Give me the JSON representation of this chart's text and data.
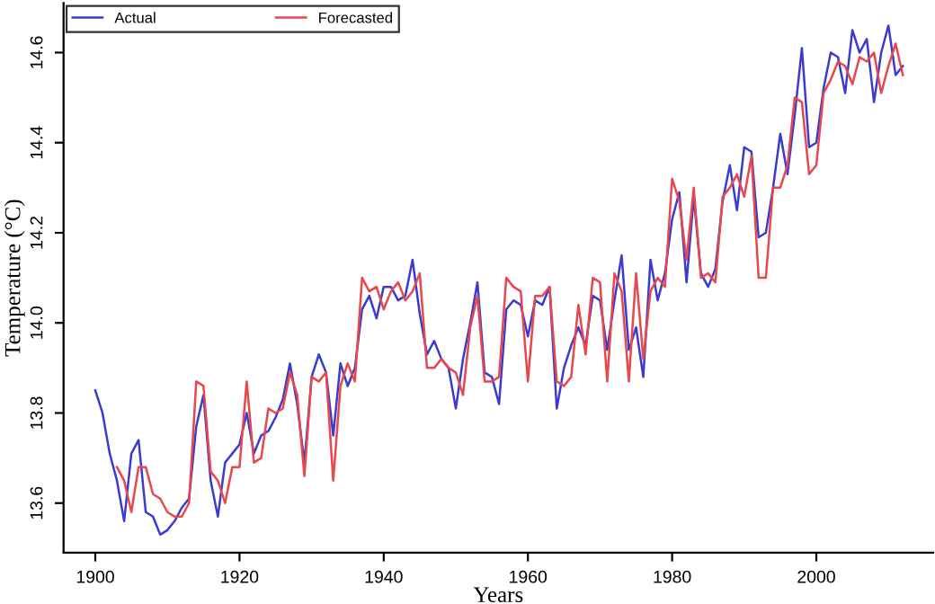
{
  "chart_data": {
    "type": "line",
    "xlabel": "Years",
    "ylabel": "Temperature (°C)",
    "xlim": [
      1895.6,
      2016.2
    ],
    "ylim": [
      13.49,
      14.71
    ],
    "xticks": [
      1900,
      1920,
      1940,
      1960,
      1980,
      2000
    ],
    "yticks": [
      {
        "value": 13.6,
        "label": "13.6"
      },
      {
        "value": 13.8,
        "label": "13.8"
      },
      {
        "value": 14.0,
        "label": "14.0"
      },
      {
        "value": 14.2,
        "label": "14.2"
      },
      {
        "value": 14.4,
        "label": "14.4"
      },
      {
        "value": 14.6,
        "label": "14.6"
      }
    ],
    "grid": false,
    "legend": "top left",
    "line_style": "solid",
    "series": [
      {
        "name": "Actual",
        "color": "#3b3bd1",
        "x": [
          1900,
          1901,
          1902,
          1903,
          1904,
          1905,
          1906,
          1907,
          1908,
          1909,
          1910,
          1911,
          1912,
          1913,
          1914,
          1915,
          1916,
          1917,
          1918,
          1919,
          1920,
          1921,
          1922,
          1923,
          1924,
          1925,
          1926,
          1927,
          1928,
          1929,
          1930,
          1931,
          1932,
          1933,
          1934,
          1935,
          1936,
          1937,
          1938,
          1939,
          1940,
          1941,
          1942,
          1943,
          1944,
          1945,
          1946,
          1947,
          1948,
          1949,
          1950,
          1951,
          1952,
          1953,
          1954,
          1955,
          1956,
          1957,
          1958,
          1959,
          1960,
          1961,
          1962,
          1963,
          1964,
          1965,
          1966,
          1967,
          1968,
          1969,
          1970,
          1971,
          1972,
          1973,
          1974,
          1975,
          1976,
          1977,
          1978,
          1979,
          1980,
          1981,
          1982,
          1983,
          1984,
          1985,
          1986,
          1987,
          1988,
          1989,
          1990,
          1991,
          1992,
          1993,
          1994,
          1995,
          1996,
          1997,
          1998,
          1999,
          2000,
          2001,
          2002,
          2003,
          2004,
          2005,
          2006,
          2007,
          2008,
          2009,
          2010,
          2011,
          2012
        ],
        "values": [
          13.85,
          13.8,
          13.71,
          13.65,
          13.56,
          13.71,
          13.74,
          13.58,
          13.57,
          13.53,
          13.54,
          13.56,
          13.59,
          13.61,
          13.77,
          13.84,
          13.65,
          13.57,
          13.69,
          13.71,
          13.73,
          13.8,
          13.71,
          13.75,
          13.76,
          13.79,
          13.83,
          13.91,
          13.82,
          13.69,
          13.88,
          13.93,
          13.89,
          13.75,
          13.91,
          13.86,
          13.9,
          14.03,
          14.06,
          14.01,
          14.08,
          14.08,
          14.05,
          14.06,
          14.14,
          14.02,
          13.93,
          13.96,
          13.92,
          13.9,
          13.81,
          13.92,
          14.0,
          14.09,
          13.89,
          13.88,
          13.82,
          14.03,
          14.05,
          14.04,
          13.97,
          14.05,
          14.04,
          14.08,
          13.81,
          13.9,
          13.95,
          13.99,
          13.95,
          14.06,
          14.05,
          13.94,
          14.05,
          14.15,
          13.94,
          13.99,
          13.88,
          14.14,
          14.05,
          14.11,
          14.23,
          14.29,
          14.09,
          14.28,
          14.11,
          14.08,
          14.12,
          14.27,
          14.35,
          14.25,
          14.39,
          14.38,
          14.19,
          14.2,
          14.3,
          14.42,
          14.33,
          14.46,
          14.61,
          14.39,
          14.4,
          14.52,
          14.6,
          14.59,
          14.51,
          14.65,
          14.6,
          14.63,
          14.49,
          14.6,
          14.66,
          14.55,
          14.57
        ]
      },
      {
        "name": "Forecasted",
        "color": "#e8474c",
        "x": [
          1903,
          1904,
          1905,
          1906,
          1907,
          1908,
          1909,
          1910,
          1911,
          1912,
          1913,
          1914,
          1915,
          1916,
          1917,
          1918,
          1919,
          1920,
          1921,
          1922,
          1923,
          1924,
          1925,
          1926,
          1927,
          1928,
          1929,
          1930,
          1931,
          1932,
          1933,
          1934,
          1935,
          1936,
          1937,
          1938,
          1939,
          1940,
          1941,
          1942,
          1943,
          1944,
          1945,
          1946,
          1947,
          1948,
          1949,
          1950,
          1951,
          1952,
          1953,
          1954,
          1955,
          1956,
          1957,
          1958,
          1959,
          1960,
          1961,
          1962,
          1963,
          1964,
          1965,
          1966,
          1967,
          1968,
          1969,
          1970,
          1971,
          1972,
          1973,
          1974,
          1975,
          1976,
          1977,
          1978,
          1979,
          1980,
          1981,
          1982,
          1983,
          1984,
          1985,
          1986,
          1987,
          1988,
          1989,
          1990,
          1991,
          1992,
          1993,
          1994,
          1995,
          1996,
          1997,
          1998,
          1999,
          2000,
          2001,
          2002,
          2003,
          2004,
          2005,
          2006,
          2007,
          2008,
          2009,
          2010,
          2011,
          2012
        ],
        "values": [
          13.68,
          13.65,
          13.58,
          13.68,
          13.68,
          13.62,
          13.61,
          13.58,
          13.57,
          13.57,
          13.6,
          13.87,
          13.86,
          13.67,
          13.65,
          13.6,
          13.68,
          13.68,
          13.87,
          13.69,
          13.7,
          13.81,
          13.8,
          13.81,
          13.89,
          13.84,
          13.66,
          13.88,
          13.87,
          13.89,
          13.65,
          13.86,
          13.91,
          13.87,
          14.1,
          14.07,
          14.08,
          14.03,
          14.07,
          14.09,
          14.05,
          14.07,
          14.11,
          13.9,
          13.9,
          13.92,
          13.9,
          13.89,
          13.84,
          13.99,
          14.06,
          13.87,
          13.87,
          13.88,
          14.1,
          14.08,
          14.07,
          13.87,
          14.06,
          14.06,
          14.08,
          13.87,
          13.86,
          13.88,
          14.04,
          13.93,
          14.1,
          14.09,
          13.87,
          14.11,
          14.07,
          13.87,
          14.11,
          13.92,
          14.07,
          14.1,
          14.08,
          14.32,
          14.27,
          14.14,
          14.3,
          14.1,
          14.11,
          14.09,
          14.28,
          14.3,
          14.33,
          14.28,
          14.37,
          14.1,
          14.1,
          14.3,
          14.3,
          14.35,
          14.5,
          14.49,
          14.33,
          14.35,
          14.51,
          14.54,
          14.58,
          14.57,
          14.53,
          14.59,
          14.58,
          14.6,
          14.51,
          14.57,
          14.62,
          14.55
        ]
      }
    ]
  }
}
